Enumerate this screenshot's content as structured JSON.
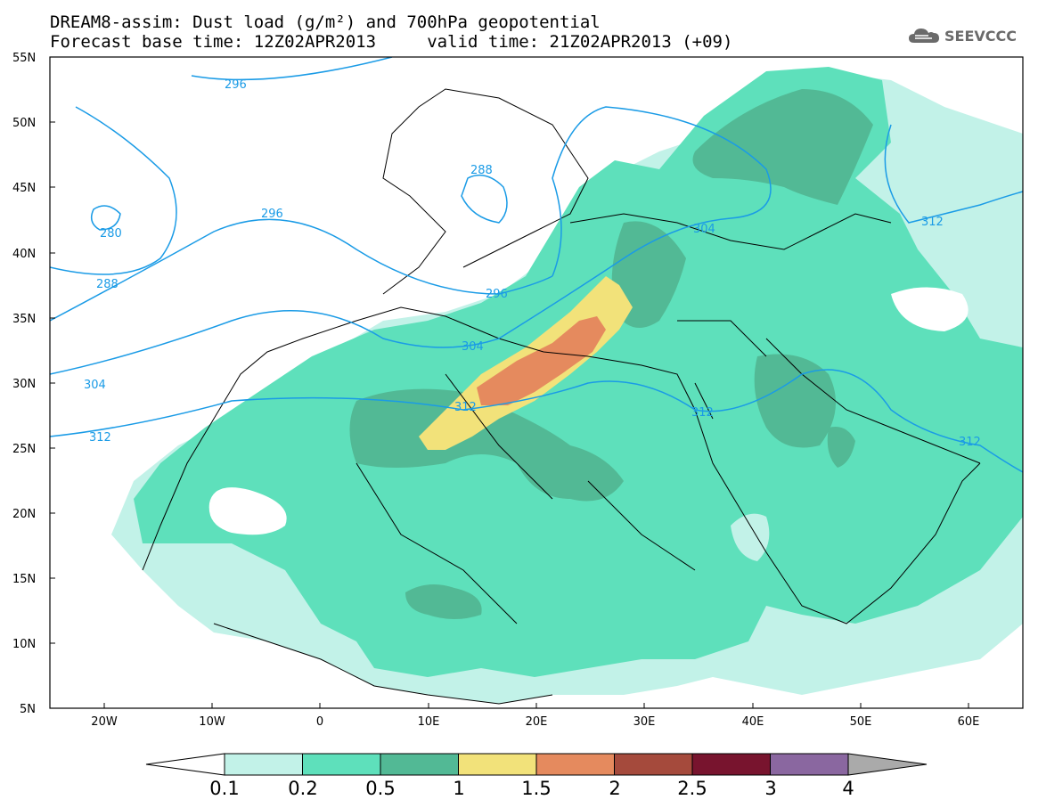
{
  "header": {
    "title_line1": "DREAM8-assim: Dust load (g/m²) and 700hPa geopotential",
    "title_line2": "Forecast base time: 12Z02APR2013     valid time: 21Z02APR2013 (+09)",
    "logo_text": "SEEVCCC"
  },
  "map": {
    "lon_range": [
      -25,
      65
    ],
    "lat_range": [
      5,
      55
    ],
    "lat_ticks": [
      "55N",
      "50N",
      "45N",
      "40N",
      "35N",
      "30N",
      "25N",
      "20N",
      "15N",
      "10N",
      "5N"
    ],
    "lon_ticks": [
      "20W",
      "10W",
      "0",
      "10E",
      "20E",
      "30E",
      "40E",
      "50E",
      "60E"
    ],
    "contour_labels": [
      "296",
      "288",
      "280",
      "296",
      "288",
      "304",
      "296",
      "304",
      "312",
      "304",
      "312",
      "312",
      "312",
      "304",
      "312"
    ],
    "contour_color": "#1a9be6"
  },
  "colorbar": {
    "levels": [
      "0.1",
      "0.2",
      "0.5",
      "1",
      "1.5",
      "2",
      "2.5",
      "3",
      "4"
    ],
    "colors": [
      "#c2f2e8",
      "#5ee0bb",
      "#52b995",
      "#f2e27a",
      "#e58a5e",
      "#a54a3c",
      "#78142e",
      "#8a67a0"
    ],
    "under_color": "#ffffff",
    "over_color": "#aaaaaa"
  }
}
